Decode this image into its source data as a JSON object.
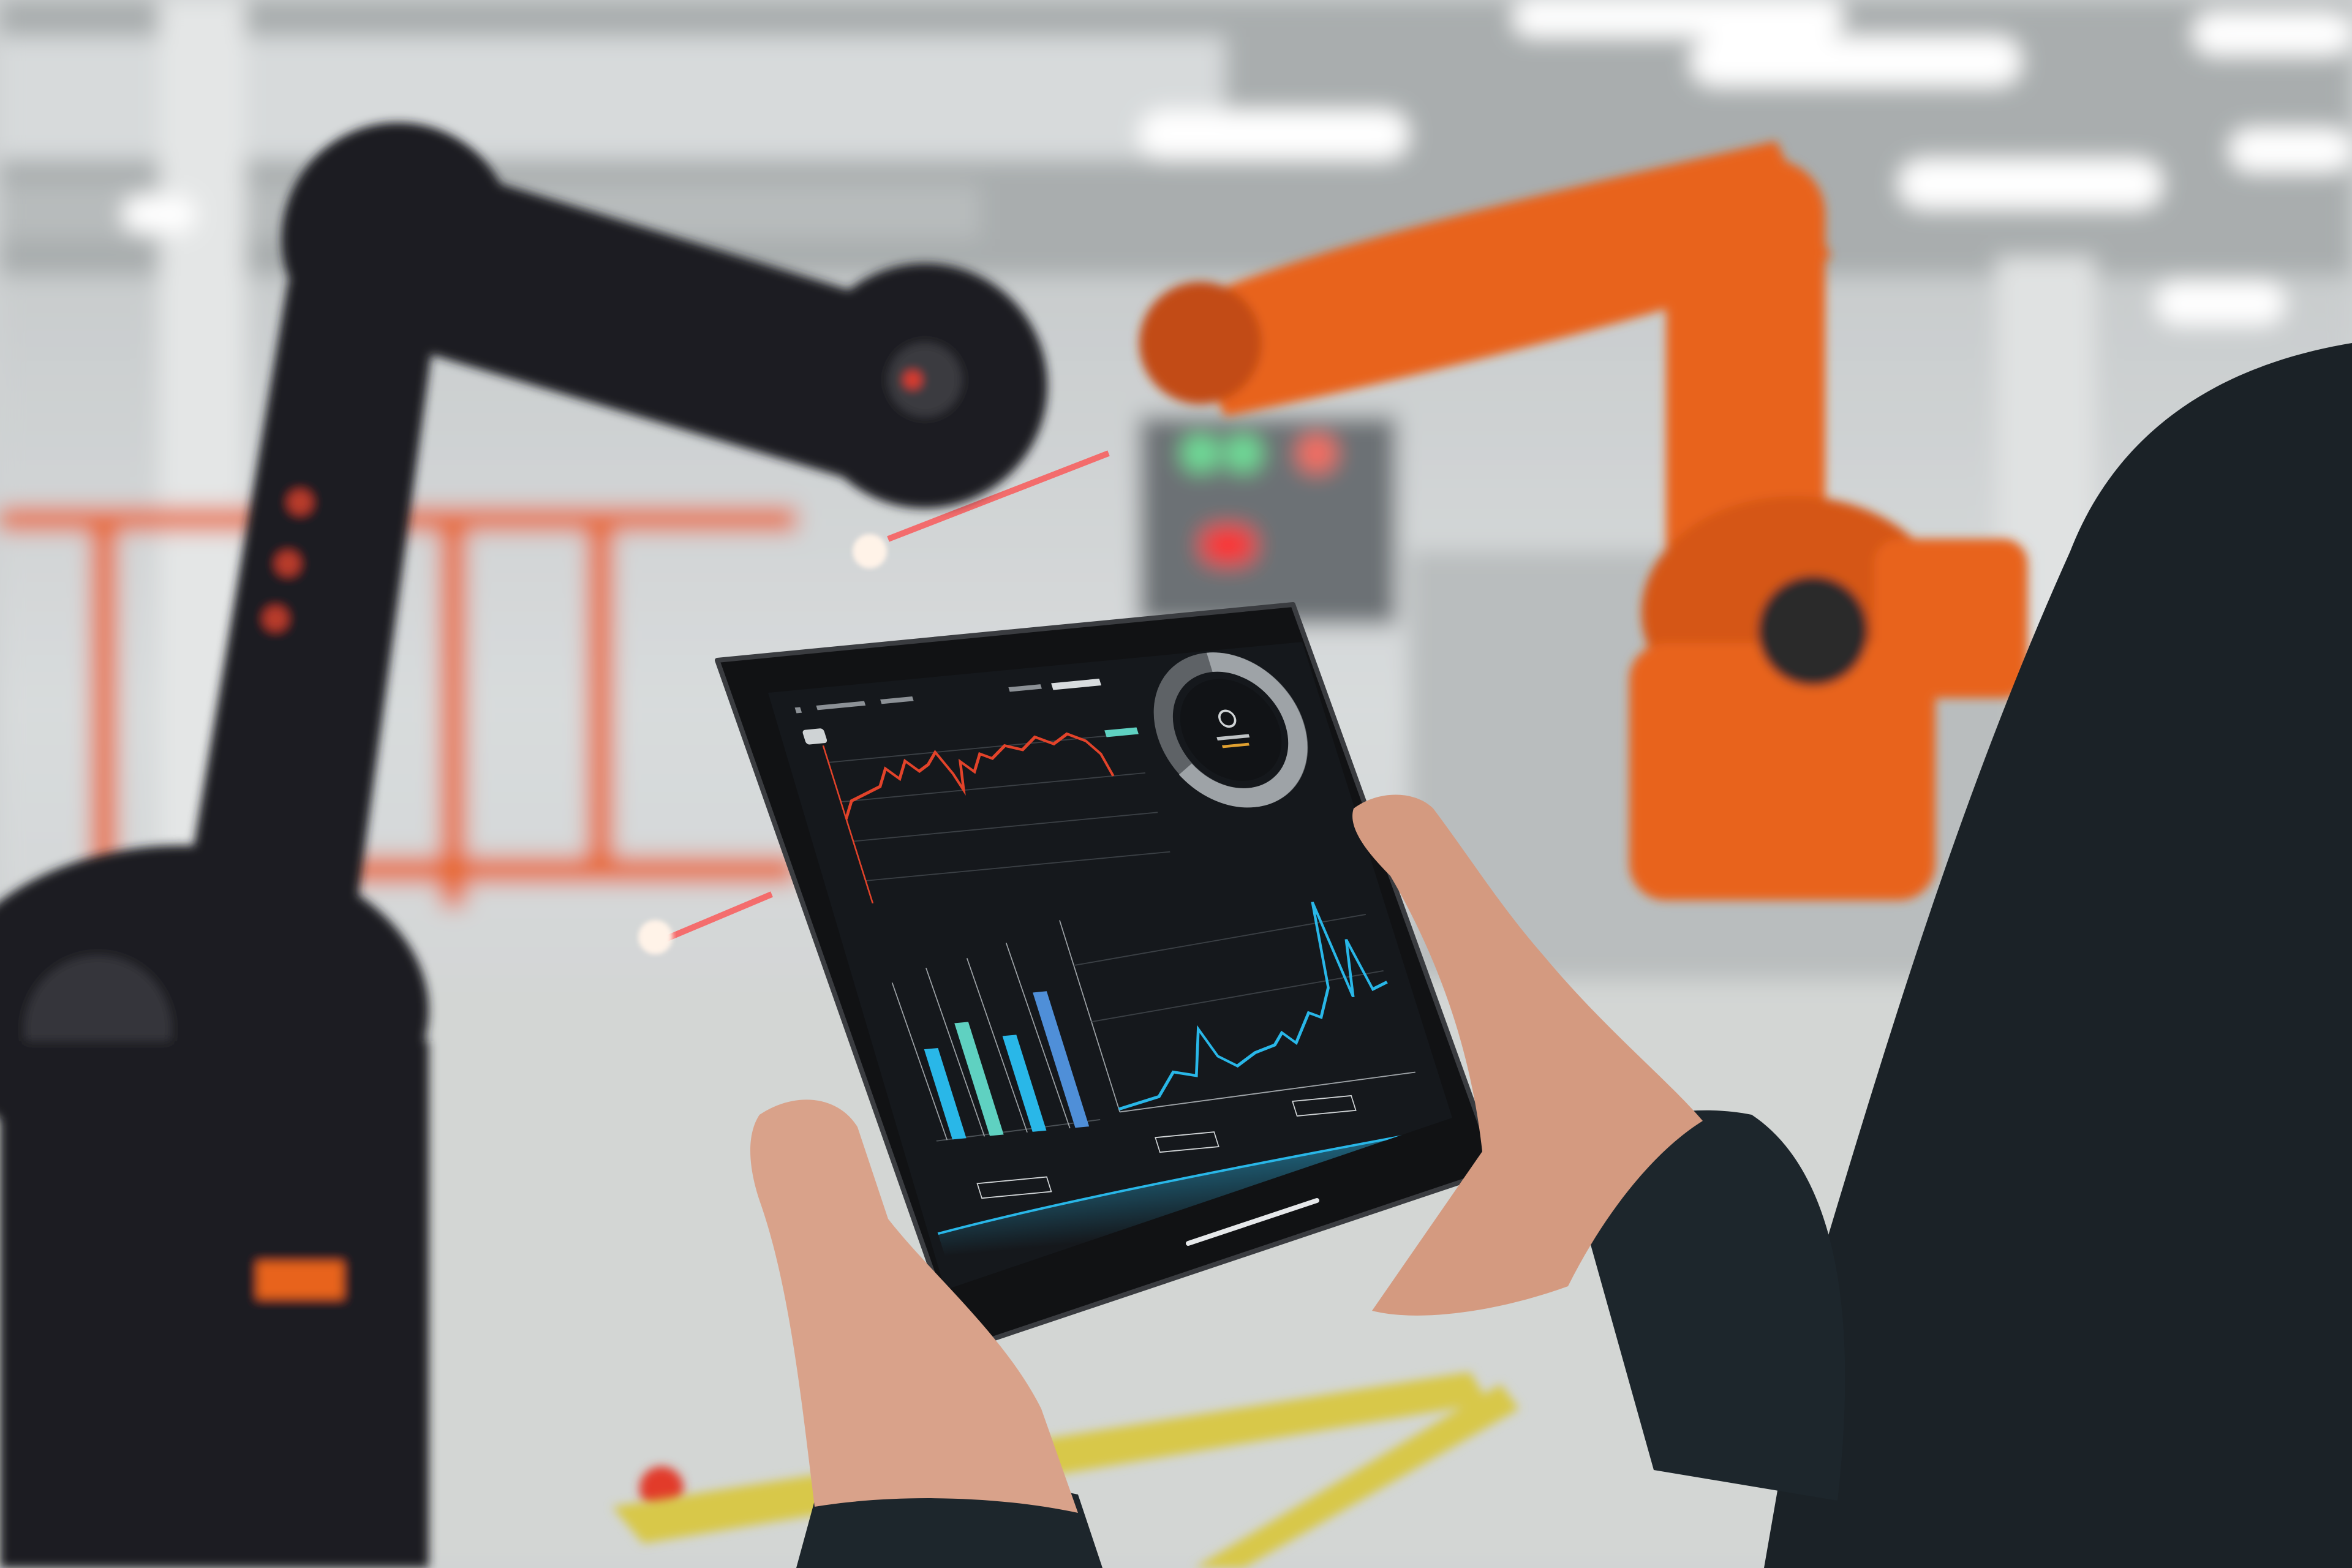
{
  "scene": {
    "description_tags": [
      "factory-floor",
      "robot-arm-orange",
      "robot-arm-black",
      "tablet",
      "hands"
    ],
    "colors": {
      "background": "#d4d7d8",
      "orange_robot": "#e8641c",
      "black_robot": "#1c1d20",
      "tablet_bezel": "#111214",
      "screen": "#15181c",
      "red_trace": "#e2432a",
      "cyan_trace": "#29b7e8",
      "skin": "#d9a28a",
      "sleeve": "#1d262c",
      "floor_line": "#d8c84a",
      "laser": "#ff4a4a"
    },
    "tablet": {
      "widgets": [
        "line-chart-red",
        "gauge-ring",
        "bar-chart",
        "line-chart-cyan",
        "timeline-wave"
      ],
      "gauge_level": 0.8
    }
  }
}
